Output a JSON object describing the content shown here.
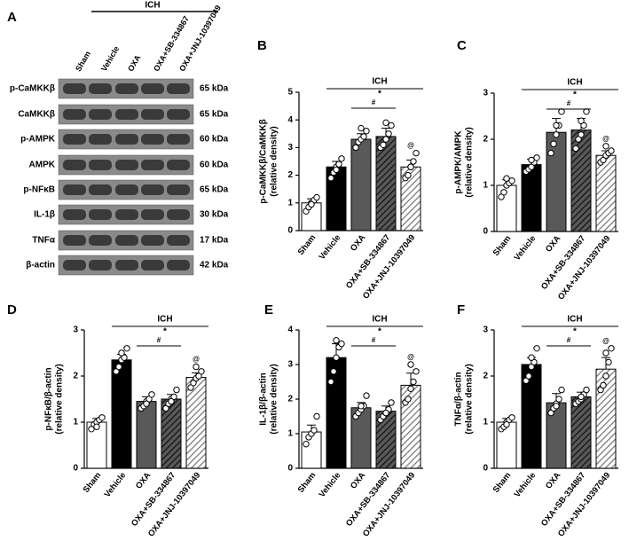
{
  "blot": {
    "panel": "A",
    "group": "ICH",
    "lanes": [
      "Sham",
      "Vehicle",
      "OXA",
      "OXA+SB-334867",
      "OXA+JNJ-10397049"
    ],
    "rows": [
      {
        "protein": "p-CaMKKβ",
        "size": "65 kDa"
      },
      {
        "protein": "CaMKKβ",
        "size": "65 kDa"
      },
      {
        "protein": "p-AMPK",
        "size": "60 kDa"
      },
      {
        "protein": "AMPK",
        "size": "60 kDa"
      },
      {
        "protein": "p-NFκB",
        "size": "65 kDa"
      },
      {
        "protein": "IL-1β",
        "size": "30 kDa"
      },
      {
        "protein": "TNFα",
        "size": "17 kDa"
      },
      {
        "protein": "β-actin",
        "size": "42 kDa"
      }
    ]
  },
  "chart_data": [
    {
      "type": "bar",
      "panel": "B",
      "ylabel": "p-CaMKKβ/CaMKKβ",
      "ylabel_sub": "(relative density)",
      "categories": [
        "Sham",
        "Vehicle",
        "OXA",
        "OXA+SB-334867",
        "OXA+JNJ-10397049"
      ],
      "values": [
        1.0,
        2.3,
        3.3,
        3.4,
        2.3
      ],
      "errors": [
        0.15,
        0.2,
        0.2,
        0.3,
        0.25
      ],
      "points": [
        [
          0.7,
          0.85,
          1.0,
          1.1,
          1.2,
          0.95
        ],
        [
          1.9,
          2.1,
          2.3,
          2.4,
          2.6,
          2.2
        ],
        [
          3.0,
          3.2,
          3.3,
          3.4,
          3.6,
          3.7
        ],
        [
          3.0,
          3.1,
          3.3,
          3.5,
          3.8,
          3.9
        ],
        [
          1.9,
          2.0,
          2.3,
          2.5,
          2.8,
          2.3
        ]
      ],
      "colors": [
        "#ffffff",
        "#000000",
        "#595959",
        "#595959",
        "#ffffff"
      ],
      "hatch": [
        false,
        false,
        false,
        true,
        true
      ],
      "ylim": [
        0,
        5
      ],
      "yticks": [
        0,
        1,
        2,
        3,
        4,
        5
      ],
      "annotations": {
        "group": "ICH",
        "star": "*",
        "hash": "#",
        "at": "@"
      }
    },
    {
      "type": "bar",
      "panel": "C",
      "ylabel": "p-AMPK/AMPK",
      "ylabel_sub": "(relative density)",
      "categories": [
        "Sham",
        "Vehicle",
        "OXA",
        "OXA+SB-334867",
        "OXA+JNJ-10397049"
      ],
      "values": [
        1.0,
        1.45,
        2.15,
        2.2,
        1.65
      ],
      "errors": [
        0.12,
        0.12,
        0.3,
        0.25,
        0.1
      ],
      "points": [
        [
          0.75,
          0.85,
          1.0,
          1.05,
          1.1,
          1.15
        ],
        [
          1.3,
          1.35,
          1.4,
          1.5,
          1.6,
          1.55
        ],
        [
          1.7,
          1.9,
          2.1,
          2.3,
          2.6,
          2.3
        ],
        [
          1.8,
          2.0,
          2.1,
          2.3,
          2.6,
          2.4
        ],
        [
          1.5,
          1.55,
          1.65,
          1.7,
          1.75,
          1.85
        ]
      ],
      "colors": [
        "#ffffff",
        "#000000",
        "#595959",
        "#595959",
        "#ffffff"
      ],
      "hatch": [
        false,
        false,
        false,
        true,
        true
      ],
      "ylim": [
        0,
        3
      ],
      "yticks": [
        0,
        1,
        2,
        3
      ],
      "annotations": {
        "group": "ICH",
        "star": "*",
        "hash": "#",
        "at": "@"
      }
    },
    {
      "type": "bar",
      "panel": "D",
      "ylabel": "p-NFκB/β-actin",
      "ylabel_sub": "(relative density)",
      "categories": [
        "Sham",
        "Vehicle",
        "OXA",
        "OXA+SB-334867",
        "OXA+JNJ-10397049"
      ],
      "values": [
        1.0,
        2.35,
        1.45,
        1.5,
        1.97
      ],
      "errors": [
        0.08,
        0.12,
        0.1,
        0.1,
        0.1
      ],
      "points": [
        [
          0.85,
          0.95,
          1.0,
          1.05,
          1.1,
          0.9
        ],
        [
          2.1,
          2.2,
          2.35,
          2.4,
          2.6,
          2.5
        ],
        [
          1.3,
          1.35,
          1.45,
          1.5,
          1.6,
          1.4
        ],
        [
          1.3,
          1.4,
          1.5,
          1.55,
          1.7,
          1.45
        ],
        [
          1.75,
          1.85,
          1.95,
          2.0,
          2.1,
          2.2
        ]
      ],
      "colors": [
        "#ffffff",
        "#000000",
        "#595959",
        "#595959",
        "#ffffff"
      ],
      "hatch": [
        false,
        false,
        false,
        true,
        true
      ],
      "ylim": [
        0,
        3
      ],
      "yticks": [
        0,
        1,
        2,
        3
      ],
      "annotations": {
        "group": "ICH",
        "star": "*",
        "hash": "#",
        "at": "@"
      }
    },
    {
      "type": "bar",
      "panel": "E",
      "ylabel": "IL-1β/β-actin",
      "ylabel_sub": "(relative density)",
      "categories": [
        "Sham",
        "Vehicle",
        "OXA",
        "OXA+SB-334867",
        "OXA+JNJ-10397049"
      ],
      "values": [
        1.05,
        3.2,
        1.75,
        1.65,
        2.4
      ],
      "errors": [
        0.2,
        0.4,
        0.15,
        0.15,
        0.35
      ],
      "points": [
        [
          0.7,
          0.9,
          1.0,
          1.1,
          1.5
        ],
        [
          2.5,
          2.8,
          3.2,
          3.5,
          3.6,
          3.7
        ],
        [
          1.5,
          1.6,
          1.7,
          1.8,
          2.1,
          1.8
        ],
        [
          1.4,
          1.5,
          1.6,
          1.7,
          1.9,
          1.6
        ],
        [
          1.9,
          2.0,
          2.3,
          2.5,
          2.8,
          3.0
        ]
      ],
      "colors": [
        "#ffffff",
        "#000000",
        "#595959",
        "#595959",
        "#ffffff"
      ],
      "hatch": [
        false,
        false,
        false,
        true,
        true
      ],
      "ylim": [
        0,
        4
      ],
      "yticks": [
        0,
        1,
        2,
        3,
        4
      ],
      "annotations": {
        "group": "ICH",
        "star": "*",
        "hash": "#",
        "at": "@"
      }
    },
    {
      "type": "bar",
      "panel": "F",
      "ylabel": "TNFα/β-actin",
      "ylabel_sub": "(relative density)",
      "categories": [
        "Sham",
        "Vehicle",
        "OXA",
        "OXA+SB-334867",
        "OXA+JNJ-10397049"
      ],
      "values": [
        1.0,
        2.25,
        1.42,
        1.55,
        2.15
      ],
      "errors": [
        0.08,
        0.15,
        0.2,
        0.1,
        0.25
      ],
      "points": [
        [
          0.85,
          0.9,
          1.0,
          1.05,
          1.1,
          0.95
        ],
        [
          1.9,
          2.0,
          2.2,
          2.3,
          2.6,
          2.4
        ],
        [
          1.2,
          1.3,
          1.4,
          1.5,
          1.7,
          1.35
        ],
        [
          1.4,
          1.45,
          1.5,
          1.6,
          1.7,
          1.55
        ],
        [
          1.7,
          1.8,
          2.0,
          2.3,
          2.6,
          2.5
        ]
      ],
      "colors": [
        "#ffffff",
        "#000000",
        "#595959",
        "#595959",
        "#ffffff"
      ],
      "hatch": [
        false,
        false,
        false,
        true,
        true
      ],
      "ylim": [
        0,
        3
      ],
      "yticks": [
        0,
        1,
        2,
        3
      ],
      "annotations": {
        "group": "ICH",
        "star": "*",
        "hash": "#",
        "at": "@"
      }
    }
  ]
}
